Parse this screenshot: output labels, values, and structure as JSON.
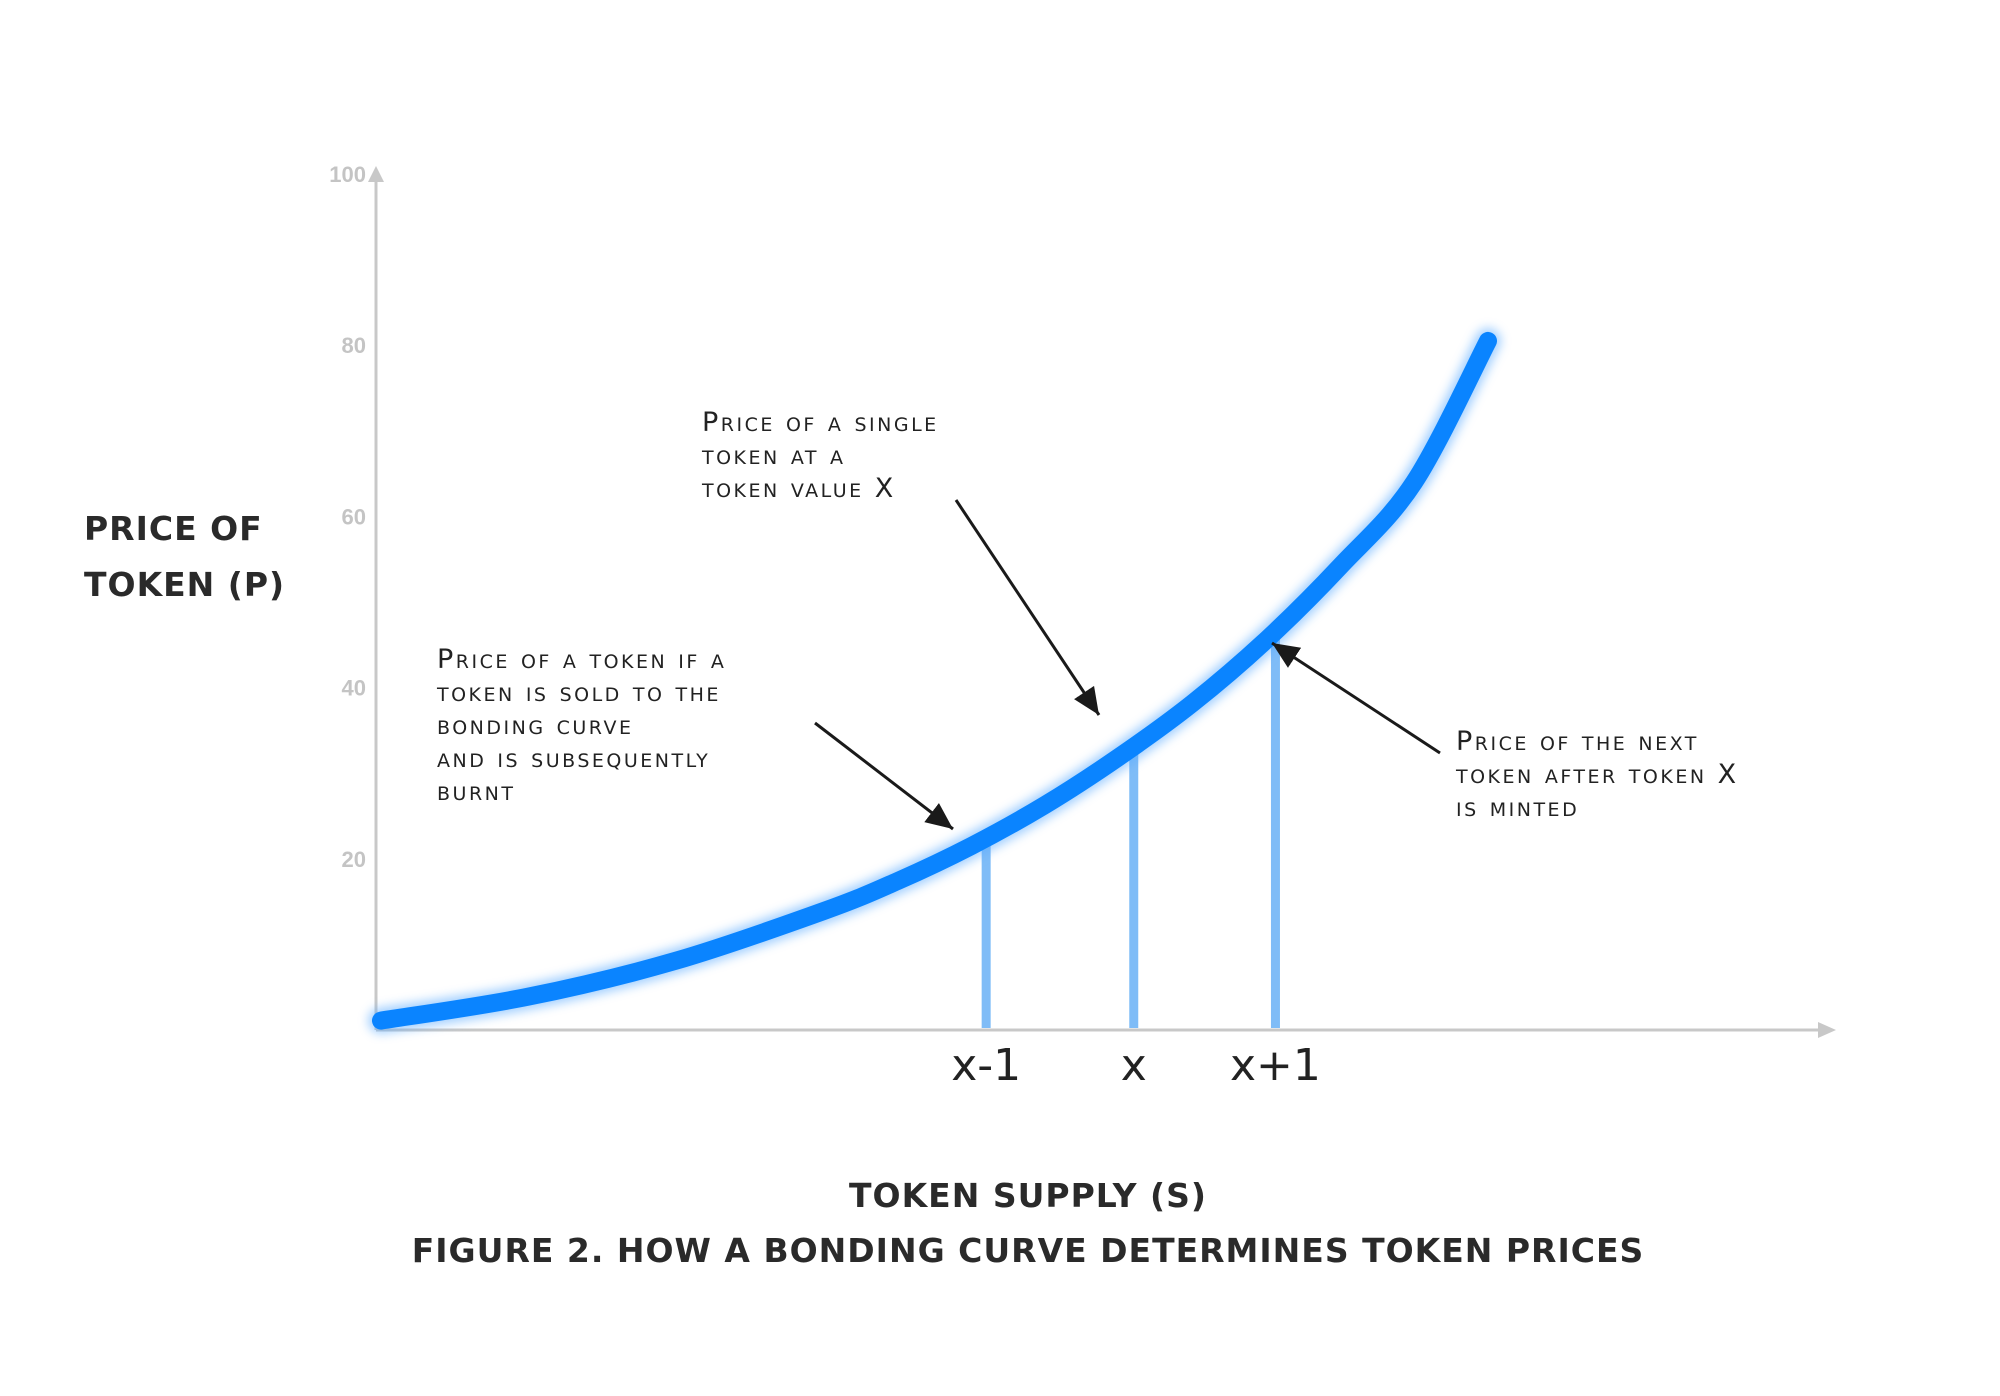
{
  "chart_data": {
    "type": "line",
    "title": "",
    "caption": "FIGURE 2. HOW A BONDING CURVE DETERMINES TOKEN PRICES",
    "ylabel": [
      "PRICE OF",
      "TOKEN (P)"
    ],
    "xlabel": "TOKEN SUPPLY (S)",
    "ylim": [
      0,
      100
    ],
    "yticks": [
      "20",
      "40",
      "60",
      "80",
      "100"
    ],
    "xlim": [
      0,
      100
    ],
    "grid": false,
    "curve_color": "#0a84ff",
    "marker_color": "#7fbcf7",
    "series": [
      {
        "values_x": [
          0,
          10,
          20,
          30,
          35,
          40,
          45,
          50,
          55,
          60,
          65,
          70,
          75
        ],
        "values_y": [
          1.1,
          3.9,
          8.1,
          13.9,
          17.4,
          21.5,
          26.3,
          31.9,
          38.2,
          45.6,
          54.2,
          64.0,
          80.5
        ]
      }
    ],
    "markers": [
      {
        "label": "x-1",
        "x": 41,
        "y": 22.5
      },
      {
        "label": "x",
        "x": 51,
        "y": 32.5
      },
      {
        "label": "x+1",
        "x": 60.6,
        "y": 46.5
      }
    ],
    "annotations": [
      {
        "lines": [
          "Price of a token if a",
          "token is sold to the",
          "bonding curve",
          "and is subsequently",
          "burnt"
        ]
      },
      {
        "lines": [
          "Price of a single",
          "token at a",
          "token value X"
        ]
      },
      {
        "lines": [
          "Price of the next",
          "token after token X",
          "is minted"
        ]
      }
    ]
  }
}
